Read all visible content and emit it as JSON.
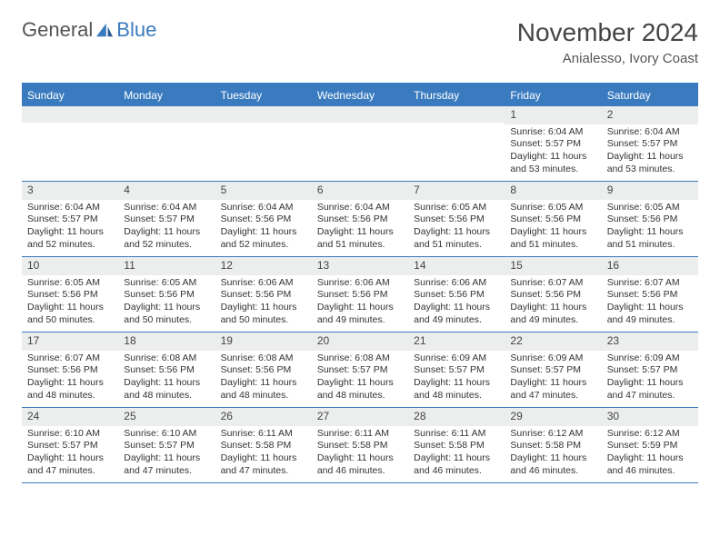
{
  "logo": {
    "part1": "General",
    "part2": "Blue"
  },
  "title": "November 2024",
  "location": "Anialesso, Ivory Coast",
  "colors": {
    "header_bar": "#3a7bbf",
    "daynum_bg": "#eceded",
    "text": "#333333",
    "title_text": "#444444"
  },
  "weekdays": [
    "Sunday",
    "Monday",
    "Tuesday",
    "Wednesday",
    "Thursday",
    "Friday",
    "Saturday"
  ],
  "weeks": [
    [
      null,
      null,
      null,
      null,
      null,
      {
        "n": "1",
        "sr": "Sunrise: 6:04 AM",
        "ss": "Sunset: 5:57 PM",
        "d1": "Daylight: 11 hours",
        "d2": "and 53 minutes."
      },
      {
        "n": "2",
        "sr": "Sunrise: 6:04 AM",
        "ss": "Sunset: 5:57 PM",
        "d1": "Daylight: 11 hours",
        "d2": "and 53 minutes."
      }
    ],
    [
      {
        "n": "3",
        "sr": "Sunrise: 6:04 AM",
        "ss": "Sunset: 5:57 PM",
        "d1": "Daylight: 11 hours",
        "d2": "and 52 minutes."
      },
      {
        "n": "4",
        "sr": "Sunrise: 6:04 AM",
        "ss": "Sunset: 5:57 PM",
        "d1": "Daylight: 11 hours",
        "d2": "and 52 minutes."
      },
      {
        "n": "5",
        "sr": "Sunrise: 6:04 AM",
        "ss": "Sunset: 5:56 PM",
        "d1": "Daylight: 11 hours",
        "d2": "and 52 minutes."
      },
      {
        "n": "6",
        "sr": "Sunrise: 6:04 AM",
        "ss": "Sunset: 5:56 PM",
        "d1": "Daylight: 11 hours",
        "d2": "and 51 minutes."
      },
      {
        "n": "7",
        "sr": "Sunrise: 6:05 AM",
        "ss": "Sunset: 5:56 PM",
        "d1": "Daylight: 11 hours",
        "d2": "and 51 minutes."
      },
      {
        "n": "8",
        "sr": "Sunrise: 6:05 AM",
        "ss": "Sunset: 5:56 PM",
        "d1": "Daylight: 11 hours",
        "d2": "and 51 minutes."
      },
      {
        "n": "9",
        "sr": "Sunrise: 6:05 AM",
        "ss": "Sunset: 5:56 PM",
        "d1": "Daylight: 11 hours",
        "d2": "and 51 minutes."
      }
    ],
    [
      {
        "n": "10",
        "sr": "Sunrise: 6:05 AM",
        "ss": "Sunset: 5:56 PM",
        "d1": "Daylight: 11 hours",
        "d2": "and 50 minutes."
      },
      {
        "n": "11",
        "sr": "Sunrise: 6:05 AM",
        "ss": "Sunset: 5:56 PM",
        "d1": "Daylight: 11 hours",
        "d2": "and 50 minutes."
      },
      {
        "n": "12",
        "sr": "Sunrise: 6:06 AM",
        "ss": "Sunset: 5:56 PM",
        "d1": "Daylight: 11 hours",
        "d2": "and 50 minutes."
      },
      {
        "n": "13",
        "sr": "Sunrise: 6:06 AM",
        "ss": "Sunset: 5:56 PM",
        "d1": "Daylight: 11 hours",
        "d2": "and 49 minutes."
      },
      {
        "n": "14",
        "sr": "Sunrise: 6:06 AM",
        "ss": "Sunset: 5:56 PM",
        "d1": "Daylight: 11 hours",
        "d2": "and 49 minutes."
      },
      {
        "n": "15",
        "sr": "Sunrise: 6:07 AM",
        "ss": "Sunset: 5:56 PM",
        "d1": "Daylight: 11 hours",
        "d2": "and 49 minutes."
      },
      {
        "n": "16",
        "sr": "Sunrise: 6:07 AM",
        "ss": "Sunset: 5:56 PM",
        "d1": "Daylight: 11 hours",
        "d2": "and 49 minutes."
      }
    ],
    [
      {
        "n": "17",
        "sr": "Sunrise: 6:07 AM",
        "ss": "Sunset: 5:56 PM",
        "d1": "Daylight: 11 hours",
        "d2": "and 48 minutes."
      },
      {
        "n": "18",
        "sr": "Sunrise: 6:08 AM",
        "ss": "Sunset: 5:56 PM",
        "d1": "Daylight: 11 hours",
        "d2": "and 48 minutes."
      },
      {
        "n": "19",
        "sr": "Sunrise: 6:08 AM",
        "ss": "Sunset: 5:56 PM",
        "d1": "Daylight: 11 hours",
        "d2": "and 48 minutes."
      },
      {
        "n": "20",
        "sr": "Sunrise: 6:08 AM",
        "ss": "Sunset: 5:57 PM",
        "d1": "Daylight: 11 hours",
        "d2": "and 48 minutes."
      },
      {
        "n": "21",
        "sr": "Sunrise: 6:09 AM",
        "ss": "Sunset: 5:57 PM",
        "d1": "Daylight: 11 hours",
        "d2": "and 48 minutes."
      },
      {
        "n": "22",
        "sr": "Sunrise: 6:09 AM",
        "ss": "Sunset: 5:57 PM",
        "d1": "Daylight: 11 hours",
        "d2": "and 47 minutes."
      },
      {
        "n": "23",
        "sr": "Sunrise: 6:09 AM",
        "ss": "Sunset: 5:57 PM",
        "d1": "Daylight: 11 hours",
        "d2": "and 47 minutes."
      }
    ],
    [
      {
        "n": "24",
        "sr": "Sunrise: 6:10 AM",
        "ss": "Sunset: 5:57 PM",
        "d1": "Daylight: 11 hours",
        "d2": "and 47 minutes."
      },
      {
        "n": "25",
        "sr": "Sunrise: 6:10 AM",
        "ss": "Sunset: 5:57 PM",
        "d1": "Daylight: 11 hours",
        "d2": "and 47 minutes."
      },
      {
        "n": "26",
        "sr": "Sunrise: 6:11 AM",
        "ss": "Sunset: 5:58 PM",
        "d1": "Daylight: 11 hours",
        "d2": "and 47 minutes."
      },
      {
        "n": "27",
        "sr": "Sunrise: 6:11 AM",
        "ss": "Sunset: 5:58 PM",
        "d1": "Daylight: 11 hours",
        "d2": "and 46 minutes."
      },
      {
        "n": "28",
        "sr": "Sunrise: 6:11 AM",
        "ss": "Sunset: 5:58 PM",
        "d1": "Daylight: 11 hours",
        "d2": "and 46 minutes."
      },
      {
        "n": "29",
        "sr": "Sunrise: 6:12 AM",
        "ss": "Sunset: 5:58 PM",
        "d1": "Daylight: 11 hours",
        "d2": "and 46 minutes."
      },
      {
        "n": "30",
        "sr": "Sunrise: 6:12 AM",
        "ss": "Sunset: 5:59 PM",
        "d1": "Daylight: 11 hours",
        "d2": "and 46 minutes."
      }
    ]
  ]
}
